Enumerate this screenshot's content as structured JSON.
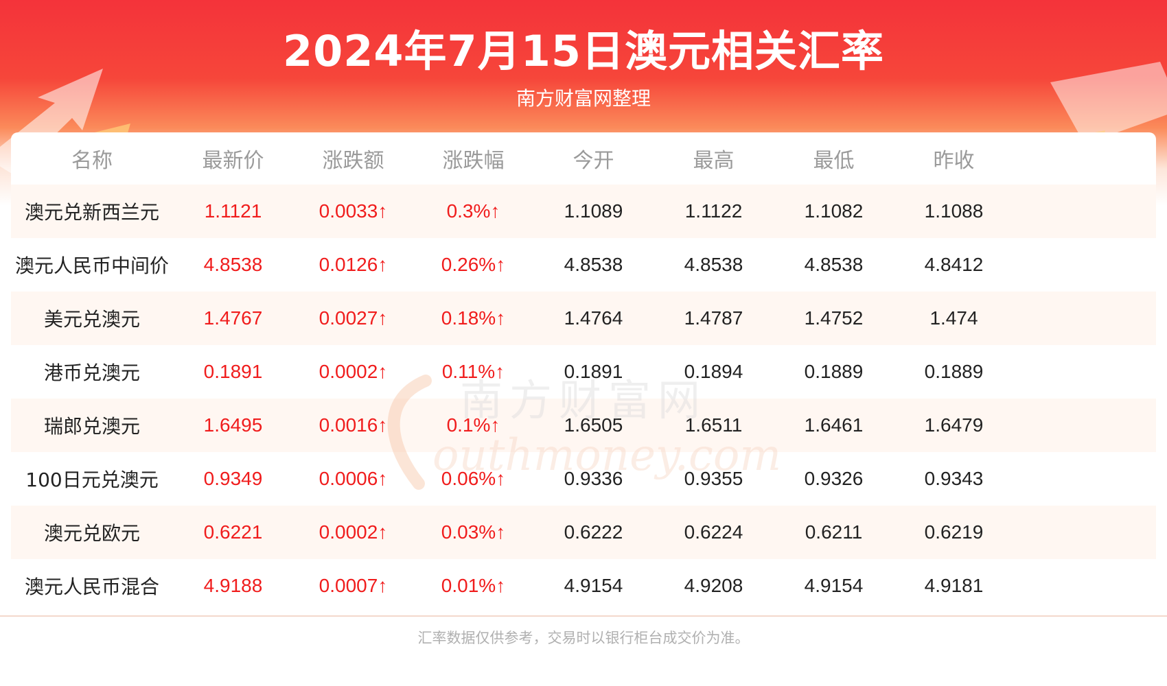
{
  "header": {
    "title": "2024年7月15日澳元相关汇率",
    "subtitle": "南方财富网整理"
  },
  "colors": {
    "accent_red": "#f4333a",
    "rise_red": "#f01c1c",
    "row_alt": "#fff7f2"
  },
  "table": {
    "columns": [
      "名称",
      "最新价",
      "涨跌额",
      "涨跌幅",
      "今开",
      "最高",
      "最低",
      "昨收"
    ],
    "rows": [
      [
        "澳元兑新西兰元",
        "1.1121",
        "0.0033↑",
        "0.3%↑",
        "1.1089",
        "1.1122",
        "1.1082",
        "1.1088"
      ],
      [
        "澳元人民币中间价",
        "4.8538",
        "0.0126↑",
        "0.26%↑",
        "4.8538",
        "4.8538",
        "4.8538",
        "4.8412"
      ],
      [
        "美元兑澳元",
        "1.4767",
        "0.0027↑",
        "0.18%↑",
        "1.4764",
        "1.4787",
        "1.4752",
        "1.474"
      ],
      [
        "港币兑澳元",
        "0.1891",
        "0.0002↑",
        "0.11%↑",
        "0.1891",
        "0.1894",
        "0.1889",
        "0.1889"
      ],
      [
        "瑞郎兑澳元",
        "1.6495",
        "0.0016↑",
        "0.1%↑",
        "1.6505",
        "1.6511",
        "1.6461",
        "1.6479"
      ],
      [
        "100日元兑澳元",
        "0.9349",
        "0.0006↑",
        "0.06%↑",
        "0.9336",
        "0.9355",
        "0.9326",
        "0.9343"
      ],
      [
        "澳元兑欧元",
        "0.6221",
        "0.0002↑",
        "0.03%↑",
        "0.6222",
        "0.6224",
        "0.6211",
        "0.6219"
      ],
      [
        "澳元人民币混合",
        "4.9188",
        "0.0007↑",
        "0.01%↑",
        "4.9154",
        "4.9208",
        "4.9154",
        "4.9181"
      ]
    ]
  },
  "watermark": {
    "cn": "南方财富网",
    "en": "outhmoney.com"
  },
  "footnote": "汇率数据仅供参考，交易时以银行柜台成交价为准。"
}
